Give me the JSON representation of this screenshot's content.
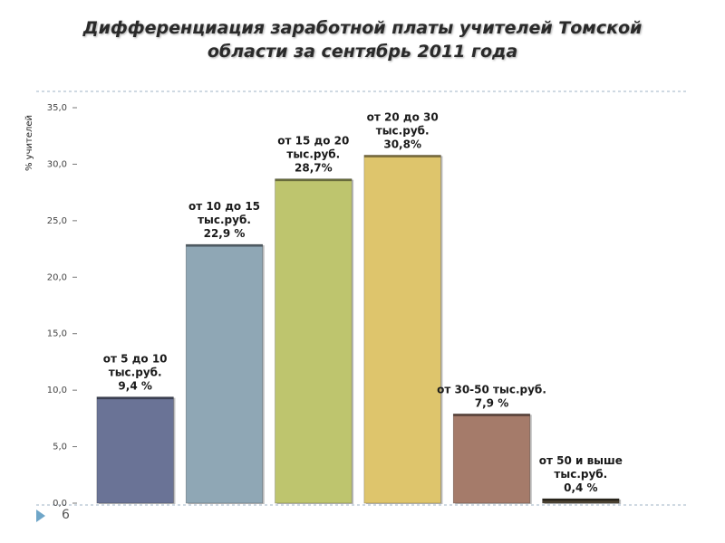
{
  "slide": {
    "title_line1": "Дифференциация заработной платы учителей Томской",
    "title_line2": "области за сентябрь 2011 года",
    "page_number": "6"
  },
  "chart_data": {
    "type": "bar",
    "title": "Дифференциация заработной платы учителей Томской области за сентябрь 2011 года",
    "ylabel": "% учителей",
    "xlabel": "",
    "ylim": [
      0,
      35
    ],
    "yticks": [
      0,
      5,
      10,
      15,
      20,
      25,
      30,
      35
    ],
    "ytick_labels": [
      "0,0",
      "5,0",
      "10,0",
      "15,0",
      "20,0",
      "25,0",
      "30,0",
      "35,0"
    ],
    "grid": false,
    "legend": "none",
    "categories": [
      "от 5 до 10 тыс.руб.",
      "от 10 до 15 тыс.руб.",
      "от 15 до 20 тыс.руб.",
      "от 20 до 30 тыс.руб.",
      "от 30-50 тыс.руб.",
      "от 50 и выше тыс.руб."
    ],
    "values": [
      9.4,
      22.9,
      28.7,
      30.8,
      7.9,
      0.4
    ],
    "labels": [
      [
        "от 5 до 10",
        "тыс.руб.",
        "9,4 %"
      ],
      [
        "от 10 до 15",
        "тыс.руб.",
        "22,9 %"
      ],
      [
        "от 15 до 20",
        "тыс.руб.",
        "28,7%"
      ],
      [
        "от 20 до 30",
        "тыс.руб.",
        "30,8%"
      ],
      [
        "от 30-50  тыс.руб.",
        "7,9 %"
      ],
      [
        "от 50 и выше",
        "тыс.руб.",
        "0,4 %"
      ]
    ],
    "colors": [
      "#6a7396",
      "#8fa7b5",
      "#bec56e",
      "#dec56c",
      "#a57b6a",
      "#4e4535"
    ]
  }
}
